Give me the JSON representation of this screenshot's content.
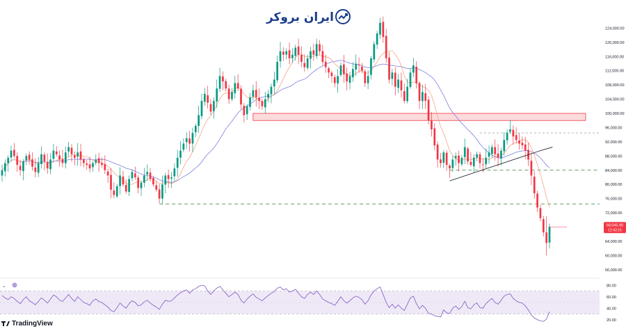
{
  "watermark": {
    "brand_name": "ایران بروکر",
    "logo_icon": "trend-up-icon"
  },
  "footer": {
    "platform_name": "TradingView",
    "platform_logo_icon": "tradingview-logo-icon"
  },
  "price_badge": {
    "price": "68,045.90",
    "countdown": "12:43:15",
    "color": "#f23645"
  },
  "colors": {
    "up_candle": "#089981",
    "down_candle": "#f23645",
    "ma_fast": "#f4a582",
    "ma_slow": "#7b7fe0",
    "resistance_zone": "#f23645",
    "support_line": "#2e7d32",
    "trendline": "#131722",
    "rsi_line": "#7e57c2",
    "rsi_band": "#ede7f6"
  },
  "price_axis": {
    "ticks": [
      "124,000.00",
      "120,000.00",
      "116,000.00",
      "112,000.00",
      "108,000.00",
      "104,000.00",
      "100,000.00",
      "96,000.00",
      "92,000.00",
      "88,000.00",
      "84,000.00",
      "80,000.00",
      "76,000.00",
      "72,000.00",
      "64,000.00",
      "60,000.00",
      "56,000.00"
    ]
  },
  "rsi_axis": {
    "ticks": [
      "80.00",
      "60.00",
      "40.00",
      "20.00"
    ]
  },
  "chart_data": {
    "type": "candlestick",
    "price_scale": "linear",
    "ylim": [
      54000,
      128000
    ],
    "grid": false,
    "resistance_zone": [
      98000,
      100000
    ],
    "support_levels": [
      84000,
      74500
    ],
    "dashed_level_gray": 94500,
    "trendline": {
      "from_price": 81000,
      "to_price": 89500
    },
    "last_price": 68045.9,
    "closes": [
      84000,
      86000,
      87500,
      89500,
      88000,
      85500,
      84000,
      86500,
      88000,
      87000,
      85000,
      83500,
      86000,
      88500,
      86500,
      84500,
      87000,
      89500,
      88500,
      87000,
      86000,
      89000,
      90500,
      88500,
      87500,
      89000,
      87000,
      86000,
      85500,
      84500,
      86000,
      87000,
      86000,
      85500,
      84000,
      82500,
      78500,
      77000,
      79500,
      82500,
      80000,
      78000,
      81500,
      83500,
      82000,
      79000,
      80500,
      82500,
      83500,
      81500,
      80000,
      78500,
      76000,
      80000,
      82500,
      81500,
      82000,
      84500,
      87500,
      89500,
      91500,
      93000,
      91500,
      94500,
      96500,
      99500,
      103500,
      105500,
      103000,
      100500,
      103500,
      107000,
      110500,
      109000,
      107000,
      104000,
      106000,
      108500,
      107000,
      102500,
      99500,
      102000,
      104500,
      106500,
      104500,
      103500,
      102000,
      104000,
      105500,
      107500,
      109500,
      114500,
      117500,
      116500,
      117500,
      115500,
      116500,
      118500,
      116500,
      114500,
      113000,
      115500,
      117500,
      116500,
      119500,
      117500,
      114500,
      113000,
      111500,
      110500,
      108500,
      110500,
      113500,
      111000,
      109000,
      110500,
      112500,
      114000,
      113500,
      112000,
      108500,
      110500,
      115500,
      119500,
      122500,
      125500,
      121500,
      115500,
      109500,
      111500,
      107500,
      109500,
      106500,
      103500,
      107500,
      111500,
      113500,
      108500,
      103500,
      106000,
      103500,
      98000,
      95500,
      91000,
      87000,
      86000,
      89000,
      85500,
      84500,
      87000,
      88000,
      86000,
      87500,
      90500,
      86500,
      85500,
      87500,
      88500,
      86000,
      85500,
      87500,
      89000,
      90500,
      88500,
      87500,
      89500,
      92500,
      94500,
      95500,
      93500,
      92500,
      91500,
      91000,
      89500,
      87000,
      82500,
      77500,
      73500,
      70500,
      66500,
      63500,
      68046
    ],
    "rsi": [
      62,
      58,
      55,
      60,
      57,
      52,
      48,
      55,
      60,
      53,
      50,
      46,
      52,
      58,
      54,
      49,
      56,
      63,
      60,
      54,
      52,
      58,
      64,
      57,
      52,
      60,
      55,
      50,
      48,
      45,
      53,
      56,
      52,
      50,
      46,
      42,
      36,
      34,
      41,
      49,
      44,
      40,
      48,
      53,
      50,
      44,
      46,
      51,
      54,
      49,
      45,
      42,
      38,
      47,
      54,
      52,
      53,
      58,
      63,
      67,
      70,
      72,
      66,
      72,
      74,
      78,
      80,
      79,
      70,
      64,
      70,
      75,
      78,
      72,
      66,
      60,
      64,
      68,
      64,
      54,
      49,
      56,
      61,
      65,
      59,
      56,
      53,
      58,
      62,
      66,
      69,
      75,
      77,
      72,
      74,
      68,
      70,
      73,
      66,
      60,
      57,
      64,
      68,
      64,
      70,
      64,
      56,
      53,
      50,
      48,
      45,
      52,
      60,
      53,
      49,
      53,
      58,
      61,
      59,
      55,
      47,
      53,
      63,
      70,
      74,
      77,
      64,
      50,
      41,
      47,
      40,
      46,
      40,
      36,
      47,
      58,
      61,
      48,
      39,
      45,
      40,
      31,
      30,
      27,
      26,
      25,
      37,
      32,
      31,
      40,
      44,
      38,
      43,
      52,
      41,
      39,
      46,
      49,
      41,
      40,
      48,
      53,
      57,
      50,
      47,
      54,
      61,
      64,
      65,
      57,
      53,
      50,
      49,
      44,
      37,
      28,
      23,
      20,
      18,
      17,
      21,
      34
    ]
  }
}
